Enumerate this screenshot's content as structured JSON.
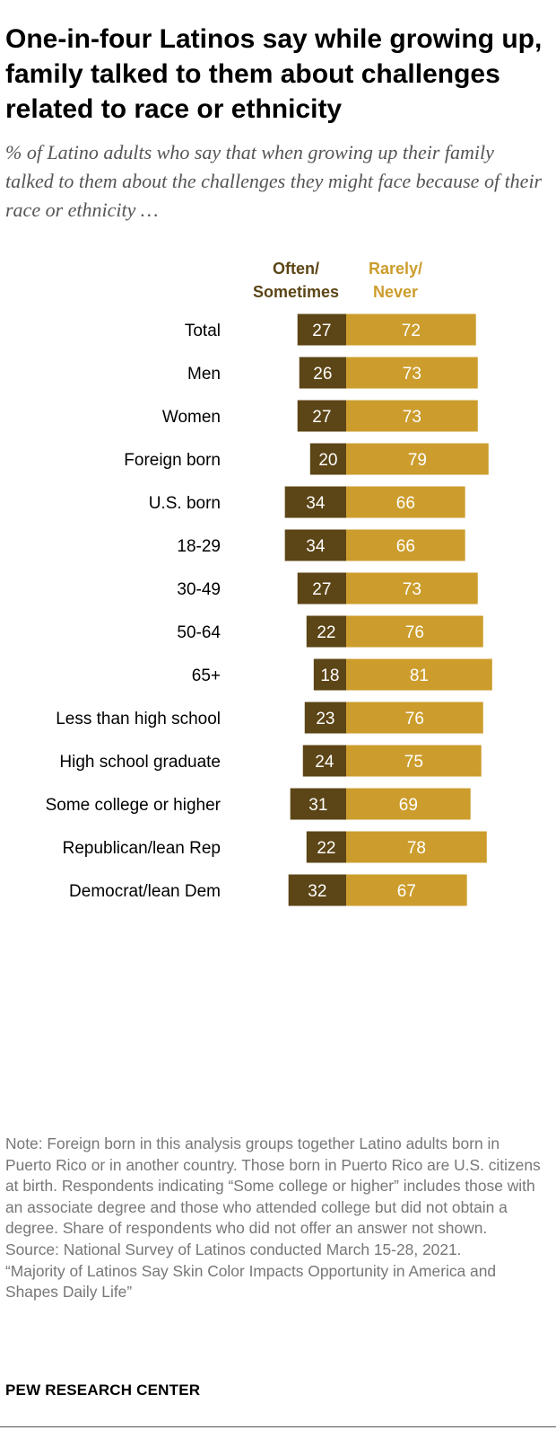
{
  "title": "One-in-four Latinos say while growing up, family talked to them about challenges related to race or ethnicity",
  "subtitle": "% of Latino adults who say that when growing up their family talked to them about the challenges they might face because of their race or ethnicity …",
  "chart_data": {
    "type": "bar",
    "orientation": "horizontal-diverging",
    "series": [
      {
        "name": "Often/ Sometimes",
        "label_lines": [
          "Often/",
          "Sometimes"
        ],
        "color": "#5c4516",
        "values": [
          27,
          26,
          27,
          20,
          34,
          34,
          27,
          22,
          18,
          23,
          24,
          31,
          22,
          32
        ]
      },
      {
        "name": "Rarely/ Never",
        "label_lines": [
          "Rarely/",
          "Never"
        ],
        "color": "#cc9d2d",
        "values": [
          72,
          73,
          73,
          79,
          66,
          66,
          73,
          76,
          81,
          76,
          75,
          69,
          78,
          67
        ]
      }
    ],
    "categories": [
      "Total",
      "Men",
      "Women",
      "Foreign born",
      "U.S. born",
      "18-29",
      "30-49",
      "50-64",
      "65+",
      "Less than high school",
      "High school graduate",
      "Some college or higher",
      "Republican/lean Rep",
      "Democrat/lean Dem"
    ],
    "groups": [
      [
        0
      ],
      [
        1,
        2
      ],
      [
        3,
        4
      ],
      [
        5,
        6,
        7,
        8
      ],
      [
        9,
        10,
        11
      ],
      [
        12,
        13
      ]
    ],
    "xlim": [
      0,
      100
    ],
    "legend": "top"
  },
  "notes": [
    "Note: Foreign born in this analysis groups together Latino adults born in Puerto Rico or in another country. Those born in Puerto Rico are U.S. citizens at birth. Respondents indicating “Some college or higher” includes those with an associate degree and those who attended college but did not obtain a degree. Share of respondents who did not offer an answer not shown.",
    "Source: National Survey of Latinos conducted March 15-28, 2021.",
    "“Majority of Latinos Say Skin Color Impacts Opportunity in America and Shapes Daily Life”"
  ],
  "brand": "PEW RESEARCH CENTER"
}
